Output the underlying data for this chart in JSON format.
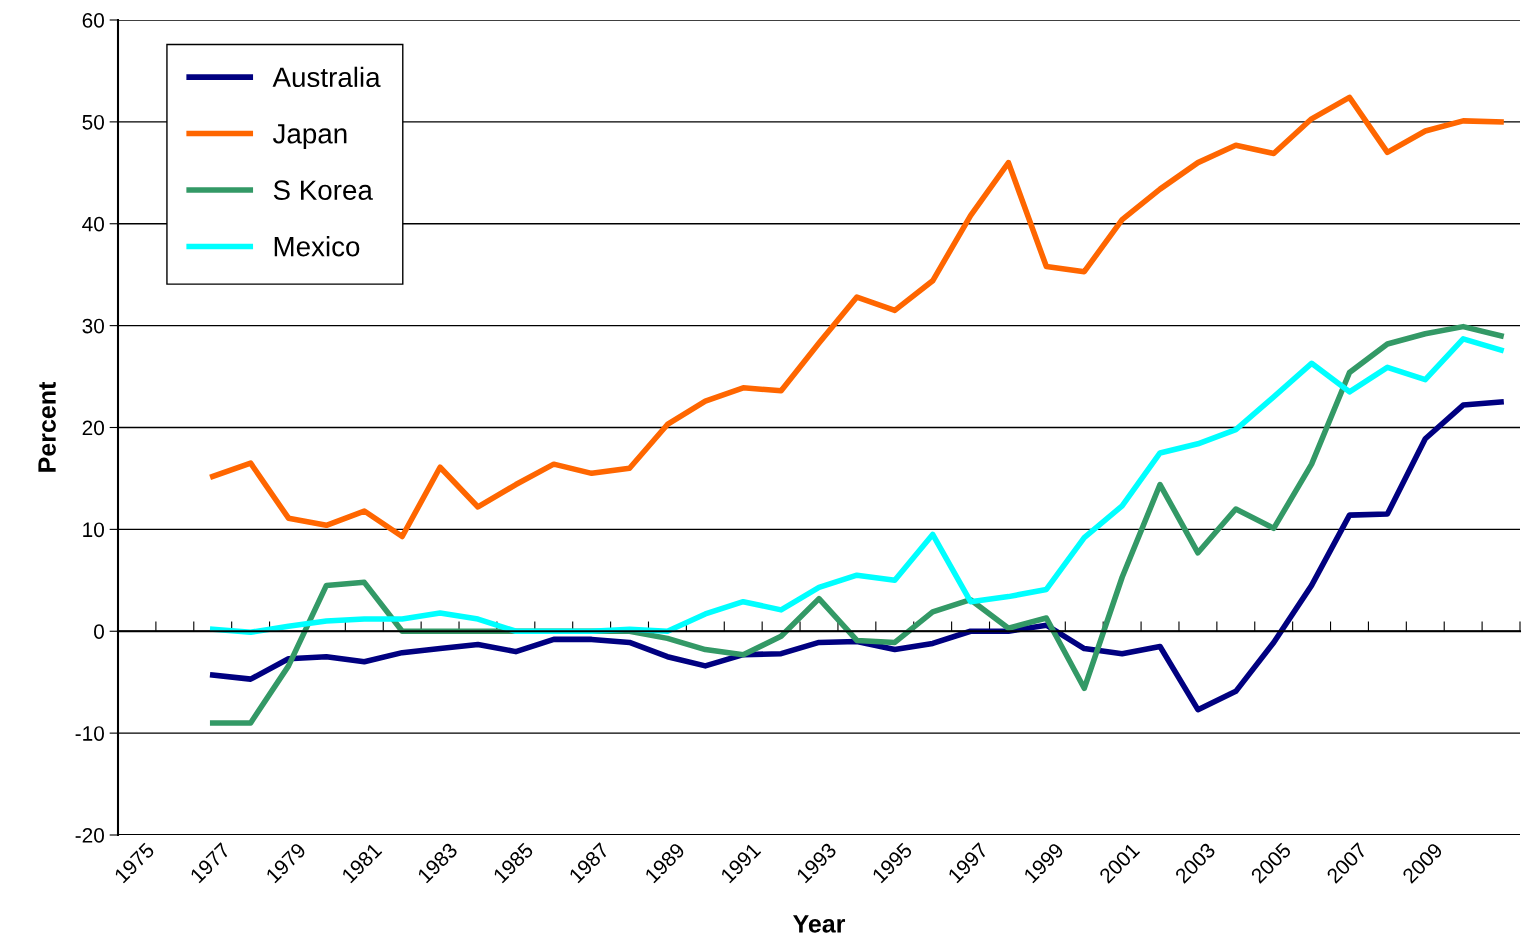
{
  "chart_data": {
    "type": "line",
    "xlabel": "Year",
    "ylabel": "Percent",
    "categories": [
      "1975",
      null,
      "1977",
      null,
      "1979",
      null,
      "1981",
      null,
      "1983",
      null,
      "1985",
      null,
      "1987",
      null,
      "1989",
      null,
      "1991",
      null,
      "1993",
      null,
      "1995",
      null,
      "1997",
      null,
      "1999",
      null,
      "2001",
      null,
      "2003",
      null,
      "2005",
      null,
      "2007",
      null,
      "2009",
      null,
      null
    ],
    "series": [
      {
        "name": "Australia",
        "color": "#000080",
        "values": [
          null,
          null,
          -4.3,
          -4.7,
          -2.7,
          -2.5,
          -3.0,
          -2.1,
          -1.7,
          -1.3,
          -2.0,
          -0.8,
          -0.8,
          -1.1,
          -2.5,
          -3.4,
          -2.3,
          -2.2,
          -1.1,
          -1.0,
          -1.8,
          -1.2,
          0,
          0,
          0.6,
          -1.7,
          -2.2,
          -1.5,
          -7.7,
          -5.9,
          -1.1,
          4.5,
          11.4,
          11.5,
          18.9,
          22.2,
          22.5
        ]
      },
      {
        "name": "Japan",
        "color": "#ff6600",
        "values": [
          null,
          null,
          15.2,
          16.5,
          11.1,
          10.4,
          11.8,
          9.3,
          16.1,
          12.2,
          14.4,
          16.4,
          15.5,
          16.0,
          20.3,
          22.6,
          23.9,
          23.6,
          28.3,
          32.8,
          31.5,
          34.4,
          40.8,
          46.0,
          35.8,
          35.3,
          40.4,
          43.4,
          46.0,
          47.7,
          46.9,
          50.3,
          52.4,
          47.0,
          49.1,
          50.1,
          50.0
        ]
      },
      {
        "name": "S Korea",
        "color": "#339966",
        "values": [
          null,
          null,
          -9.0,
          -9.0,
          -3.4,
          4.5,
          4.8,
          0,
          0,
          0,
          0,
          0,
          0,
          0,
          -0.7,
          -1.8,
          -2.3,
          -0.5,
          3.2,
          -0.9,
          -1.1,
          1.9,
          3.1,
          0.3,
          1.3,
          -5.6,
          5.3,
          14.4,
          7.7,
          12.0,
          10.1,
          16.4,
          25.4,
          28.2,
          29.2,
          29.9,
          29.0
        ]
      },
      {
        "name": "Mexico",
        "color": "#00ffff",
        "values": [
          null,
          null,
          0.2,
          -0.1,
          0.5,
          1.0,
          1.2,
          1.2,
          1.8,
          1.2,
          0,
          0,
          0,
          0.2,
          0,
          1.7,
          2.9,
          2.1,
          4.3,
          5.5,
          5.0,
          9.5,
          2.9,
          3.4,
          4.1,
          9.2,
          12.3,
          17.5,
          18.4,
          19.8,
          23.0,
          26.3,
          23.5,
          25.9,
          24.7,
          28.7,
          27.6
        ]
      }
    ],
    "ylim": [
      -20,
      60
    ],
    "yticks": [
      -20,
      -10,
      0,
      10,
      20,
      30,
      40,
      50,
      60
    ],
    "grid": "y",
    "legend": "top left",
    "marker": "none",
    "line_style": "solid"
  }
}
